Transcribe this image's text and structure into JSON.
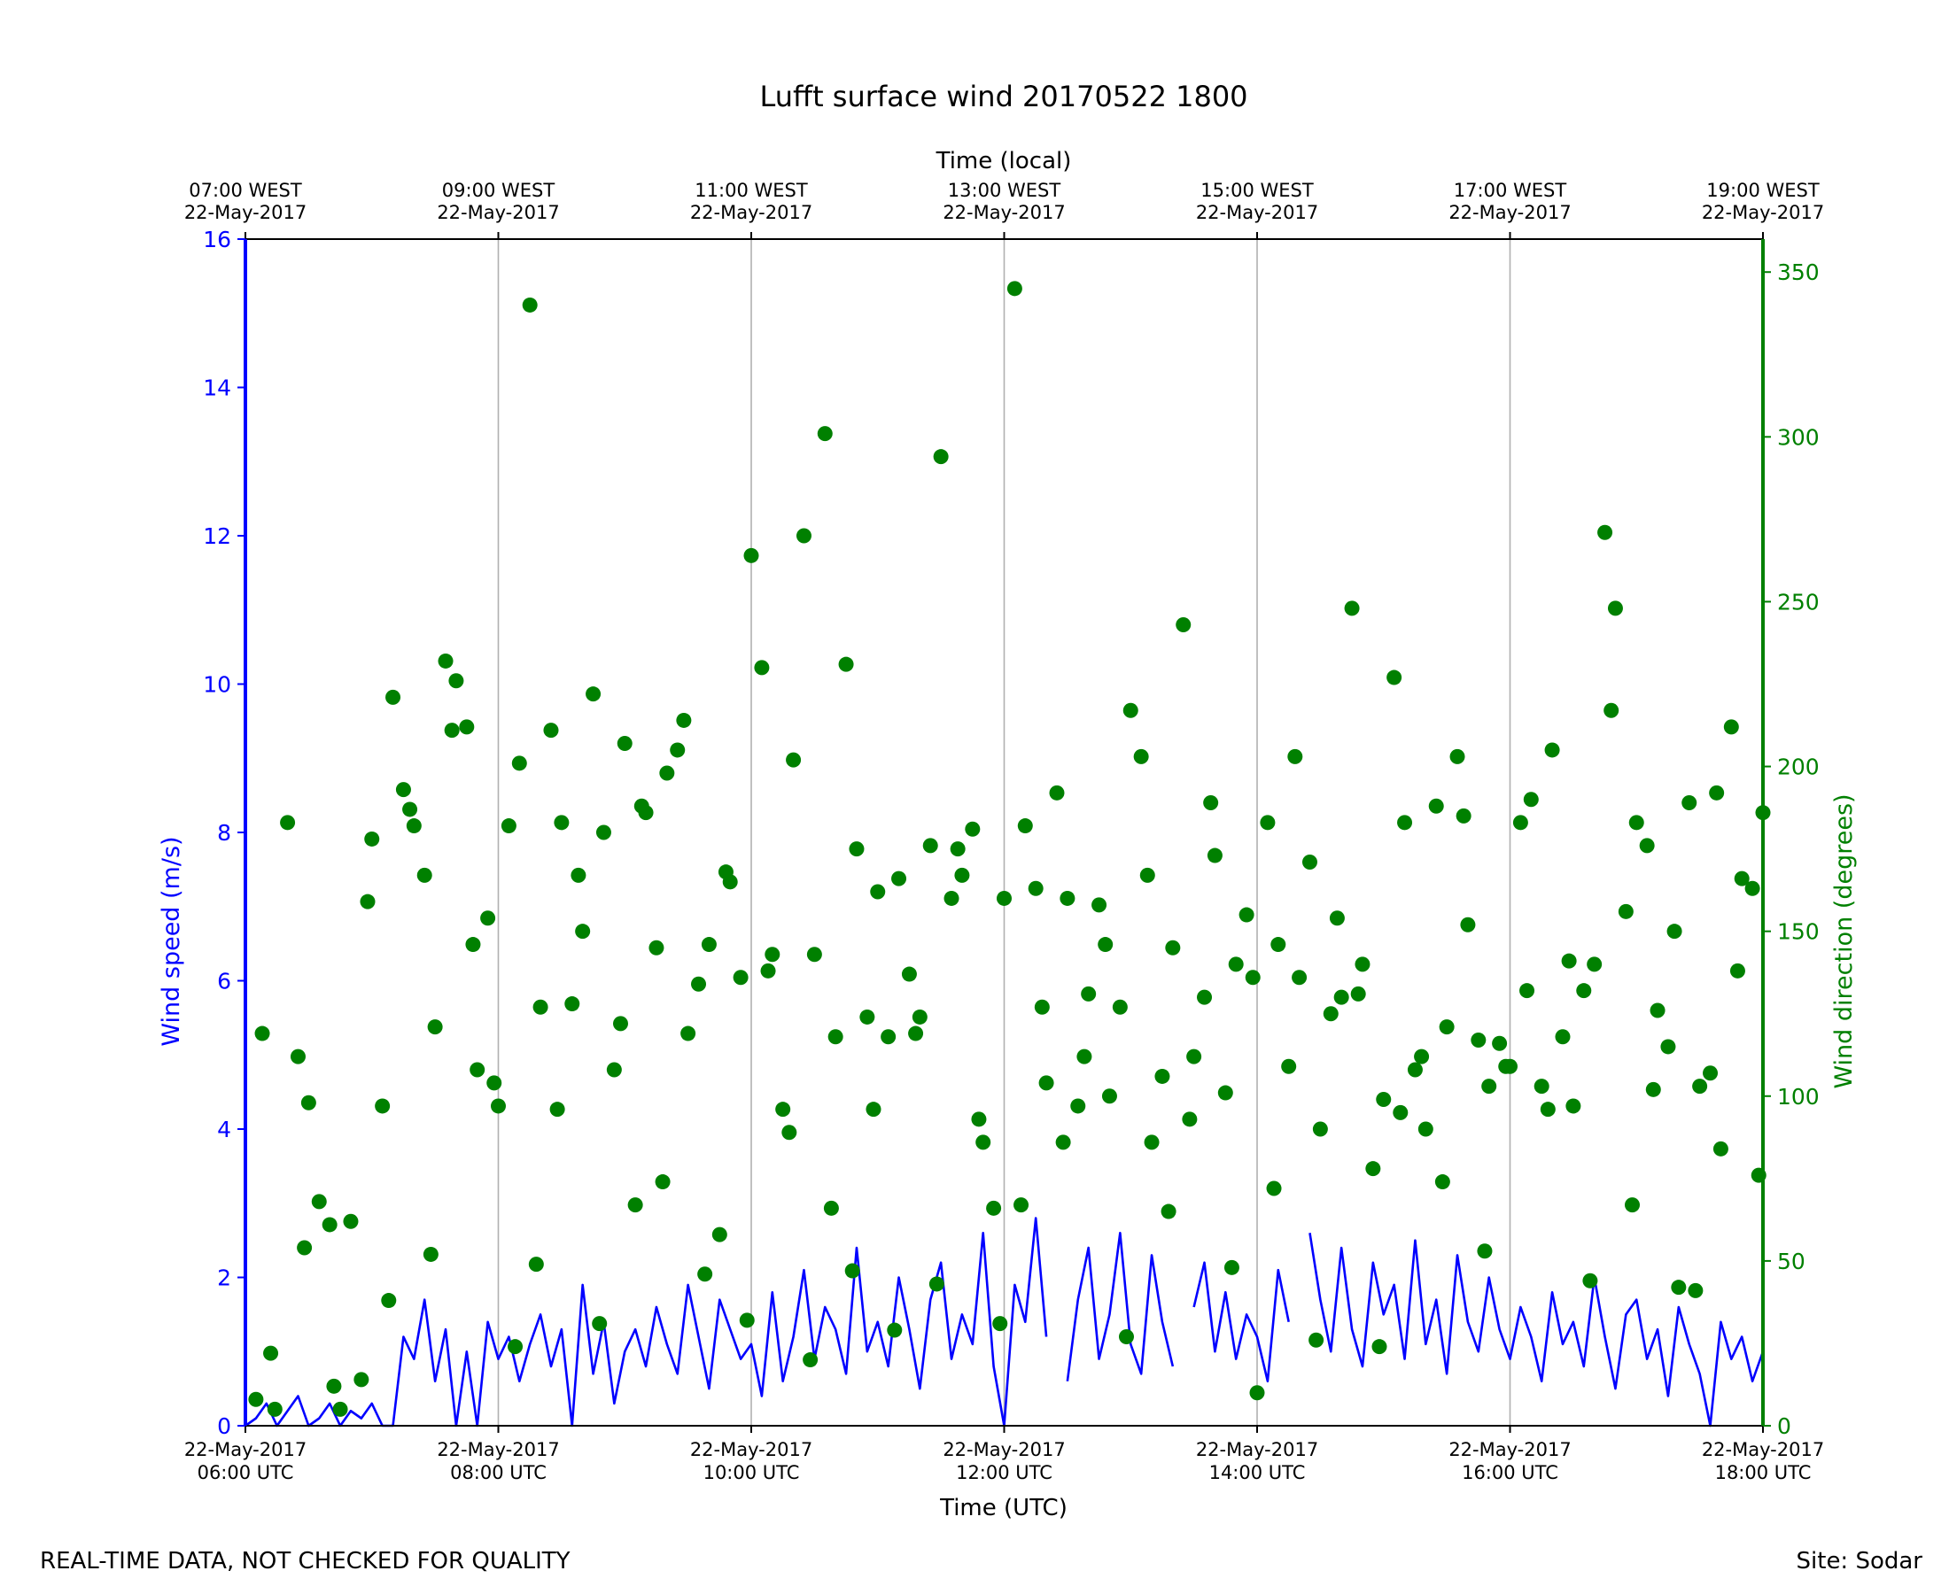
{
  "chart_data": {
    "type": "line",
    "title": "Lufft surface wind 20170522 1800",
    "xlabel": "Time (UTC)",
    "xlabel_top": "Time (local)",
    "ylabel_left": "Wind speed (m/s)",
    "ylabel_right": "Wind direction (degrees)",
    "x_range_utc": [
      "2017-05-22 06:00",
      "2017-05-22 18:00"
    ],
    "ylim_left": [
      0,
      16
    ],
    "ylim_right": [
      0,
      360
    ],
    "yticks_left": [
      "0",
      "2",
      "4",
      "6",
      "8",
      "10",
      "12",
      "14",
      "16"
    ],
    "yticks_right": [
      "0",
      "50",
      "100",
      "150",
      "200",
      "250",
      "300",
      "350"
    ],
    "xticks_bottom": [
      {
        "time": "06:00",
        "l1": "22-May-2017",
        "l2": "06:00 UTC"
      },
      {
        "time": "08:00",
        "l1": "22-May-2017",
        "l2": "08:00 UTC"
      },
      {
        "time": "10:00",
        "l1": "22-May-2017",
        "l2": "10:00 UTC"
      },
      {
        "time": "12:00",
        "l1": "22-May-2017",
        "l2": "12:00 UTC"
      },
      {
        "time": "14:00",
        "l1": "22-May-2017",
        "l2": "14:00 UTC"
      },
      {
        "time": "16:00",
        "l1": "22-May-2017",
        "l2": "16:00 UTC"
      },
      {
        "time": "18:00",
        "l1": "22-May-2017",
        "l2": "18:00 UTC"
      }
    ],
    "xticks_top": [
      {
        "time": "06:00",
        "l1": "07:00 WEST",
        "l2": "22-May-2017"
      },
      {
        "time": "08:00",
        "l1": "09:00 WEST",
        "l2": "22-May-2017"
      },
      {
        "time": "10:00",
        "l1": "11:00 WEST",
        "l2": "22-May-2017"
      },
      {
        "time": "12:00",
        "l1": "13:00 WEST",
        "l2": "22-May-2017"
      },
      {
        "time": "14:00",
        "l1": "15:00 WEST",
        "l2": "22-May-2017"
      },
      {
        "time": "16:00",
        "l1": "17:00 WEST",
        "l2": "22-May-2017"
      },
      {
        "time": "18:00",
        "l1": "19:00 WEST",
        "l2": "22-May-2017"
      }
    ],
    "grid": "vertical at major x ticks",
    "series": [
      {
        "color": "#0000ff",
        "kind": "line",
        "axis": "left",
        "note": "sampled every 5 minutes; null = gap",
        "time": [
          "06:00",
          "06:05",
          "06:10",
          "06:15",
          "06:20",
          "06:25",
          "06:30",
          "06:35",
          "06:40",
          "06:45",
          "06:50",
          "06:55",
          "07:00",
          "07:05",
          "07:10",
          "07:15",
          "07:20",
          "07:25",
          "07:30",
          "07:35",
          "07:40",
          "07:45",
          "07:50",
          "07:55",
          "08:00",
          "08:05",
          "08:10",
          "08:15",
          "08:20",
          "08:25",
          "08:30",
          "08:35",
          "08:40",
          "08:45",
          "08:50",
          "08:55",
          "09:00",
          "09:05",
          "09:10",
          "09:15",
          "09:20",
          "09:25",
          "09:30",
          "09:35",
          "09:40",
          "09:45",
          "09:50",
          "09:55",
          "10:00",
          "10:05",
          "10:10",
          "10:15",
          "10:20",
          "10:25",
          "10:30",
          "10:35",
          "10:40",
          "10:45",
          "10:50",
          "10:55",
          "11:00",
          "11:05",
          "11:10",
          "11:15",
          "11:20",
          "11:25",
          "11:30",
          "11:35",
          "11:40",
          "11:45",
          "11:50",
          "11:55",
          "12:00",
          "12:05",
          "12:10",
          "12:15",
          "12:20",
          "12:25",
          "12:30",
          "12:35",
          "12:40",
          "12:45",
          "12:50",
          "12:55",
          "13:00",
          "13:05",
          "13:10",
          "13:15",
          "13:20",
          "13:25",
          "13:30",
          "13:35",
          "13:40",
          "13:45",
          "13:50",
          "13:55",
          "14:00",
          "14:05",
          "14:10",
          "14:15",
          "14:20",
          "14:25",
          "14:30",
          "14:35",
          "14:40",
          "14:45",
          "14:50",
          "14:55",
          "15:00",
          "15:05",
          "15:10",
          "15:15",
          "15:20",
          "15:25",
          "15:30",
          "15:35",
          "15:40",
          "15:45",
          "15:50",
          "15:55",
          "16:00",
          "16:05",
          "16:10",
          "16:15",
          "16:20",
          "16:25",
          "16:30",
          "16:35",
          "16:40",
          "16:45",
          "16:50",
          "16:55",
          "17:00",
          "17:05",
          "17:10",
          "17:15",
          "17:20",
          "17:25",
          "17:30",
          "17:35",
          "17:40",
          "17:45",
          "17:50",
          "17:55",
          "18:00"
        ],
        "values": [
          0.0,
          0.1,
          0.3,
          0.0,
          0.2,
          0.4,
          0.0,
          0.1,
          0.3,
          0.0,
          0.2,
          0.1,
          0.3,
          0.0,
          0.0,
          1.2,
          0.9,
          1.7,
          0.6,
          1.3,
          0.0,
          1.0,
          0.0,
          1.4,
          0.9,
          1.2,
          0.6,
          1.1,
          1.5,
          0.8,
          1.3,
          0.0,
          1.9,
          0.7,
          1.4,
          0.3,
          1.0,
          1.3,
          0.8,
          1.6,
          1.1,
          0.7,
          1.9,
          1.2,
          0.5,
          1.7,
          1.3,
          0.9,
          1.1,
          0.4,
          1.8,
          0.6,
          1.2,
          2.1,
          0.9,
          1.6,
          1.3,
          0.7,
          2.4,
          1.0,
          1.4,
          0.8,
          2.0,
          1.3,
          0.5,
          1.7,
          2.2,
          0.9,
          1.5,
          1.1,
          2.6,
          0.8,
          0.0,
          1.9,
          1.4,
          2.8,
          1.2,
          null,
          0.6,
          1.7,
          2.4,
          0.9,
          1.5,
          2.6,
          1.1,
          0.7,
          2.3,
          1.4,
          0.8,
          null,
          1.6,
          2.2,
          1.0,
          1.8,
          0.9,
          1.5,
          1.2,
          0.6,
          2.1,
          1.4,
          null,
          2.6,
          1.7,
          1.0,
          2.4,
          1.3,
          0.8,
          2.2,
          1.5,
          1.9,
          0.9,
          2.5,
          1.1,
          1.7,
          0.7,
          2.3,
          1.4,
          1.0,
          2.0,
          1.3,
          0.9,
          1.6,
          1.2,
          0.6,
          1.8,
          1.1,
          1.4,
          0.8,
          2.0,
          1.2,
          0.5,
          1.5,
          1.7,
          0.9,
          1.3,
          0.4,
          1.6,
          1.1,
          0.7,
          0.0,
          1.4,
          0.9,
          1.2,
          0.6,
          1.0
        ]
      },
      {
        "color": "#008000",
        "kind": "scatter",
        "axis": "right",
        "note": "directional samples, hh:mm and degrees",
        "time": [
          "06:05",
          "06:08",
          "06:14",
          "06:20",
          "06:25",
          "06:30",
          "06:35",
          "06:40",
          "06:45",
          "06:50",
          "06:55",
          "07:00",
          "07:05",
          "07:10",
          "07:15",
          "07:20",
          "07:25",
          "07:30",
          "07:35",
          "07:40",
          "07:45",
          "07:50",
          "07:55",
          "08:00",
          "08:05",
          "08:10",
          "08:15",
          "08:20",
          "08:25",
          "08:30",
          "08:35",
          "08:40",
          "08:45",
          "08:50",
          "08:55",
          "09:00",
          "09:05",
          "09:10",
          "09:15",
          "09:20",
          "09:25",
          "09:30",
          "09:35",
          "09:40",
          "09:45",
          "09:50",
          "09:55",
          "10:00",
          "10:05",
          "10:10",
          "10:15",
          "10:20",
          "10:25",
          "10:30",
          "10:35",
          "10:40",
          "10:45",
          "10:50",
          "10:55",
          "11:00",
          "11:05",
          "11:10",
          "11:15",
          "11:20",
          "11:25",
          "11:30",
          "11:35",
          "11:40",
          "11:45",
          "11:50",
          "11:55",
          "12:00",
          "12:05",
          "12:10",
          "12:15",
          "12:20",
          "12:25",
          "12:30",
          "12:35",
          "12:40",
          "12:45",
          "12:50",
          "12:55",
          "13:00",
          "13:05",
          "13:10",
          "13:15",
          "13:20",
          "13:25",
          "13:30",
          "13:35",
          "13:40",
          "13:45",
          "13:50",
          "13:55",
          "14:00",
          "14:05",
          "14:10",
          "14:15",
          "14:20",
          "14:25",
          "14:30",
          "14:35",
          "14:40",
          "14:45",
          "14:50",
          "14:55",
          "15:00",
          "15:05",
          "15:10",
          "15:15",
          "15:20",
          "15:25",
          "15:30",
          "15:35",
          "15:40",
          "15:45",
          "15:50",
          "15:55",
          "16:00",
          "16:05",
          "16:10",
          "16:15",
          "16:20",
          "16:25",
          "16:30",
          "16:35",
          "16:40",
          "16:45",
          "16:50",
          "16:55",
          "17:00",
          "17:05",
          "17:10",
          "17:15",
          "17:20",
          "17:25",
          "17:30",
          "17:35",
          "17:40",
          "17:45",
          "17:50",
          "17:55",
          "18:00",
          "06:12",
          "06:28",
          "06:42",
          "06:58",
          "07:08",
          "07:18",
          "07:28",
          "07:38",
          "07:48",
          "07:58",
          "08:08",
          "08:18",
          "08:28",
          "08:38",
          "08:48",
          "08:58",
          "09:08",
          "09:18",
          "09:28",
          "09:38",
          "09:48",
          "09:58",
          "10:08",
          "10:18",
          "10:28",
          "10:38",
          "10:48",
          "10:58",
          "11:08",
          "11:18",
          "11:28",
          "11:38",
          "11:48",
          "11:58",
          "12:08",
          "12:18",
          "12:28",
          "12:38",
          "12:48",
          "12:58",
          "13:08",
          "13:18",
          "13:28",
          "13:38",
          "13:48",
          "13:58",
          "14:08",
          "14:18",
          "14:28",
          "14:38",
          "14:48",
          "14:58",
          "15:08",
          "15:18",
          "15:28",
          "15:38",
          "15:48",
          "15:58",
          "16:08",
          "16:18",
          "16:28",
          "16:38",
          "16:48",
          "16:58",
          "17:08",
          "17:18",
          "17:28",
          "17:38",
          "17:48",
          "17:58"
        ],
        "values": [
          8,
          119,
          5,
          183,
          112,
          98,
          68,
          61,
          5,
          62,
          14,
          178,
          97,
          221,
          193,
          182,
          167,
          121,
          232,
          226,
          212,
          108,
          154,
          97,
          182,
          201,
          340,
          127,
          211,
          183,
          128,
          150,
          222,
          180,
          108,
          207,
          67,
          186,
          145,
          198,
          205,
          119,
          134,
          146,
          58,
          165,
          136,
          264,
          230,
          143,
          96,
          202,
          270,
          143,
          301,
          118,
          231,
          175,
          124,
          162,
          118,
          166,
          137,
          124,
          176,
          294,
          160,
          167,
          181,
          86,
          66,
          160,
          345,
          182,
          163,
          104,
          192,
          160,
          97,
          131,
          158,
          100,
          127,
          217,
          203,
          86,
          106,
          145,
          243,
          112,
          130,
          173,
          101,
          140,
          155,
          10,
          183,
          146,
          109,
          136,
          171,
          90,
          125,
          130,
          248,
          140,
          78,
          99,
          227,
          183,
          108,
          90,
          188,
          121,
          203,
          152,
          117,
          103,
          116,
          109,
          183,
          190,
          103,
          205,
          118,
          97,
          132,
          140,
          271,
          248,
          156,
          183,
          176,
          126,
          115,
          42,
          189,
          103,
          107,
          84,
          212,
          166,
          163,
          186,
          22,
          54,
          12,
          159,
          38,
          187,
          52,
          211,
          146,
          104,
          24,
          49,
          96,
          167,
          31,
          122,
          188,
          74,
          214,
          46,
          168,
          32,
          138,
          89,
          20,
          66,
          47,
          96,
          29,
          119,
          43,
          175,
          93,
          31,
          67,
          127,
          86,
          112,
          146,
          27,
          167,
          65,
          93,
          189,
          48,
          136,
          72,
          203,
          26,
          154,
          131,
          24,
          95,
          112,
          74,
          185,
          53,
          109,
          132,
          96,
          141,
          44,
          217,
          67,
          102,
          150,
          41,
          192,
          138,
          76
        ]
      }
    ]
  },
  "footer_left": "REAL-TIME DATA, NOT CHECKED FOR QUALITY",
  "footer_right": "Site: Sodar"
}
